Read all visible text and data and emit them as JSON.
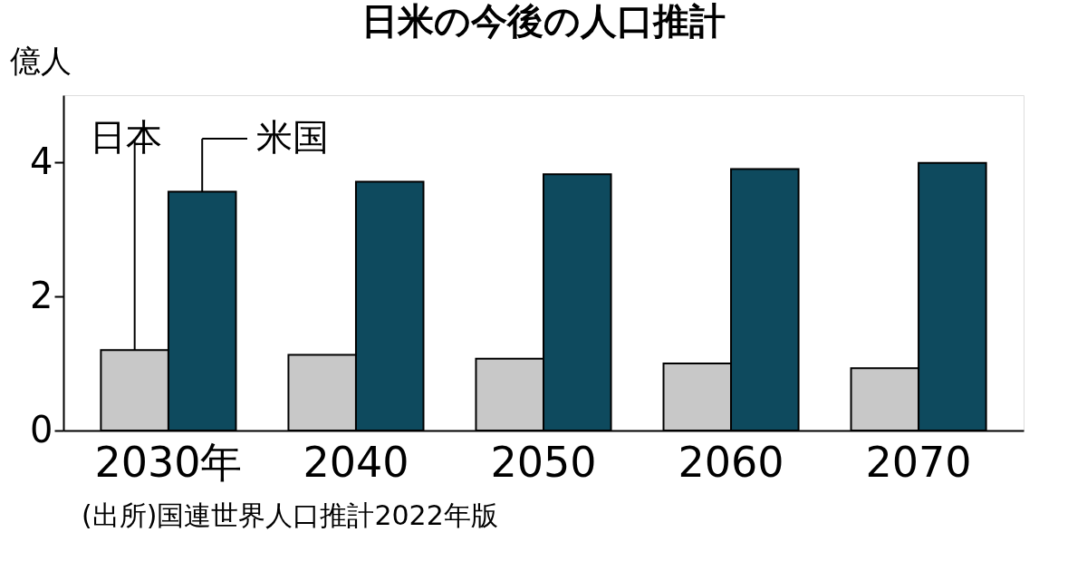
{
  "chart_data": {
    "type": "bar",
    "title": "日米の今後の人口推計",
    "ylabel": "億人",
    "categories": [
      "2030年",
      "2040",
      "2050",
      "2060",
      "2070"
    ],
    "series": [
      {
        "name": "日本",
        "color": "#c8c8c8",
        "values": [
          1.2,
          1.13,
          1.07,
          1.0,
          0.93
        ]
      },
      {
        "name": "米国",
        "color": "#0e4a5e",
        "values": [
          3.56,
          3.71,
          3.82,
          3.9,
          3.99
        ]
      }
    ],
    "ylim": [
      0,
      5
    ],
    "yticks": [
      0,
      2,
      4
    ],
    "grid": false,
    "annotations": [
      "(出所)国連世界人口推計2022年版"
    ]
  }
}
